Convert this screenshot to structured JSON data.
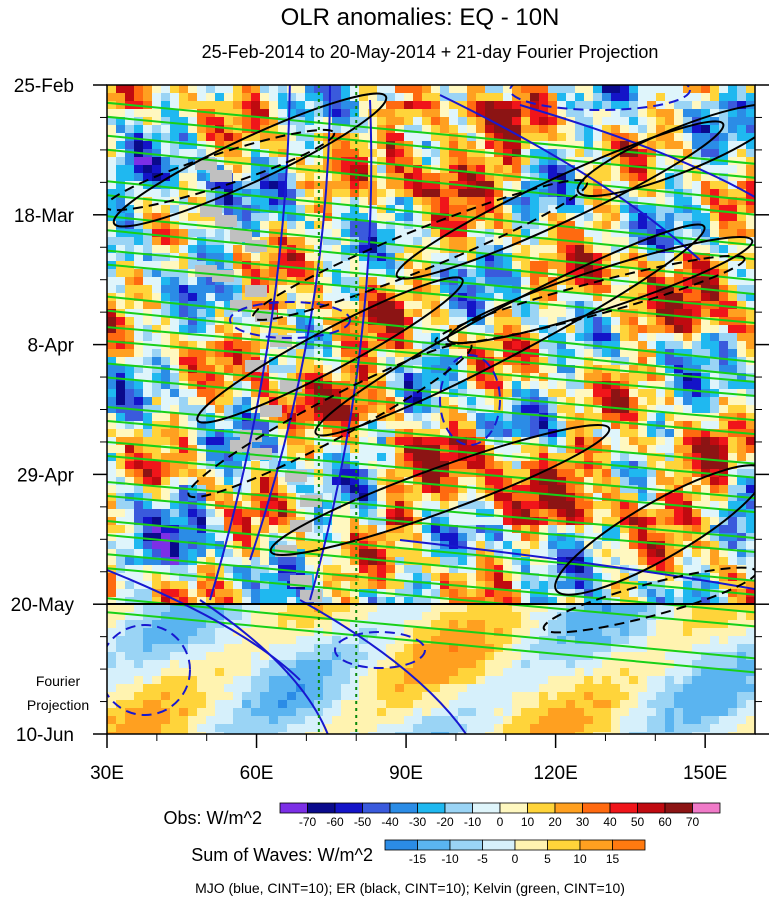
{
  "chart_data": {
    "type": "heatmap",
    "title": "OLR anomalies: EQ - 10N",
    "subtitle": "25-Feb-2014 to 20-May-2014 + 21-day Fourier Projection",
    "x_axis": {
      "label": "",
      "ticks": [
        "30E",
        "60E",
        "90E",
        "120E",
        "150E"
      ],
      "tick_values": [
        30,
        60,
        90,
        120,
        150
      ],
      "range": [
        30,
        160
      ]
    },
    "y_axis": {
      "label": "",
      "ticks": [
        "25-Feb",
        "18-Mar",
        "8-Apr",
        "29-Apr",
        "20-May",
        "10-Jun"
      ],
      "range": [
        "25-Feb",
        "10-Jun"
      ]
    },
    "projection_label": [
      "Fourier",
      "Projection"
    ],
    "reference_longitudes": [
      72.5,
      80
    ],
    "obs_colorbar": {
      "label": "Obs: W/m^2",
      "ticks": [
        "-70",
        "-60",
        "-50",
        "-40",
        "-30",
        "-20",
        "-10",
        "0",
        "10",
        "20",
        "30",
        "40",
        "50",
        "60",
        "70"
      ],
      "colors": [
        "#7c2fe6",
        "#0a0a8c",
        "#1414c8",
        "#3a5adc",
        "#2b8ce6",
        "#1fb8f0",
        "#9ad4f5",
        "#dff5fb",
        "#fff8c0",
        "#ffd43a",
        "#ffa020",
        "#ff6a10",
        "#f0151a",
        "#c00a10",
        "#8c1414",
        "#f07ac8"
      ]
    },
    "waves_colorbar": {
      "label": "Sum of Waves: W/m^2",
      "ticks": [
        "-15",
        "-10",
        "-5",
        "0",
        "5",
        "10",
        "15"
      ],
      "colors": [
        "#2b8ce6",
        "#5ab4f0",
        "#9ad4f5",
        "#d6f0fb",
        "#fff3b0",
        "#ffd43a",
        "#ffa020",
        "#ff7a10"
      ]
    },
    "footer": "MJO (blue, CINT=10); ER (black, CINT=10); Kelvin (green, CINT=10)",
    "series": [
      {
        "name": "MJO (blue, CINT=10)",
        "color": "#1818d0"
      },
      {
        "name": "ER (black, CINT=10)",
        "color": "#000000"
      },
      {
        "name": "Kelvin (green, CINT=10)",
        "color": "#18d018"
      }
    ]
  }
}
